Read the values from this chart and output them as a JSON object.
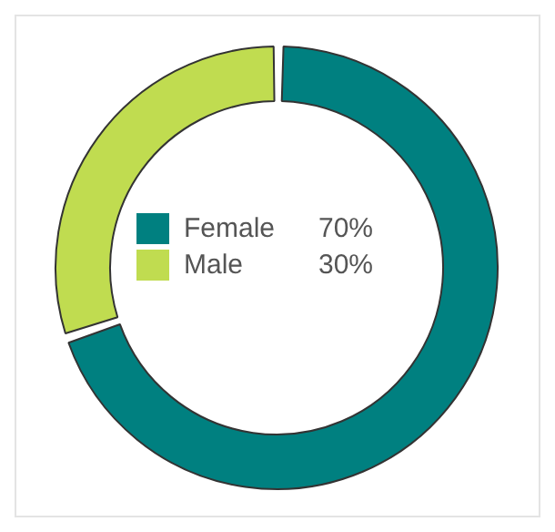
{
  "chart_data": {
    "type": "donut",
    "categories": [
      "Female",
      "Male"
    ],
    "values": [
      70,
      30
    ],
    "colors": [
      "#008080",
      "#c0dc50"
    ],
    "value_labels": [
      "70%",
      "30%"
    ],
    "legend": "center"
  }
}
